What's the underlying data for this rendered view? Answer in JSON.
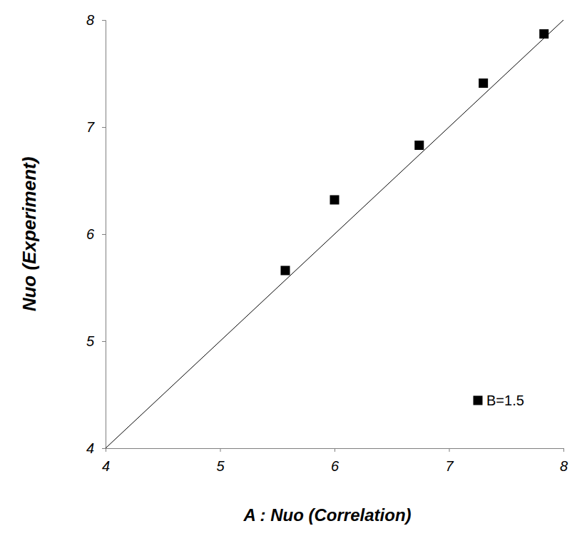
{
  "chart_data": {
    "type": "scatter",
    "x_label": "A : Nuo (Correlation)",
    "y_label": "Nuo (Experiment)",
    "xlim": [
      4,
      8
    ],
    "xticks": [
      4,
      5,
      6,
      7,
      8
    ],
    "ylim": [
      4,
      8
    ],
    "yticks": [
      4,
      5,
      6,
      7,
      8
    ],
    "grid": false,
    "legend": "bottom-right",
    "series": [
      {
        "name": "B=1.5",
        "type": "scatter",
        "marker": "square",
        "color": "#000000",
        "x": [
          5.57,
          6.0,
          6.74,
          7.3,
          7.83
        ],
        "values": [
          5.66,
          6.32,
          6.83,
          7.41,
          7.87
        ]
      },
      {
        "type": "line",
        "line_style": "solid",
        "color": "#000000",
        "x": [
          4,
          8
        ],
        "values": [
          4,
          8
        ]
      }
    ]
  }
}
